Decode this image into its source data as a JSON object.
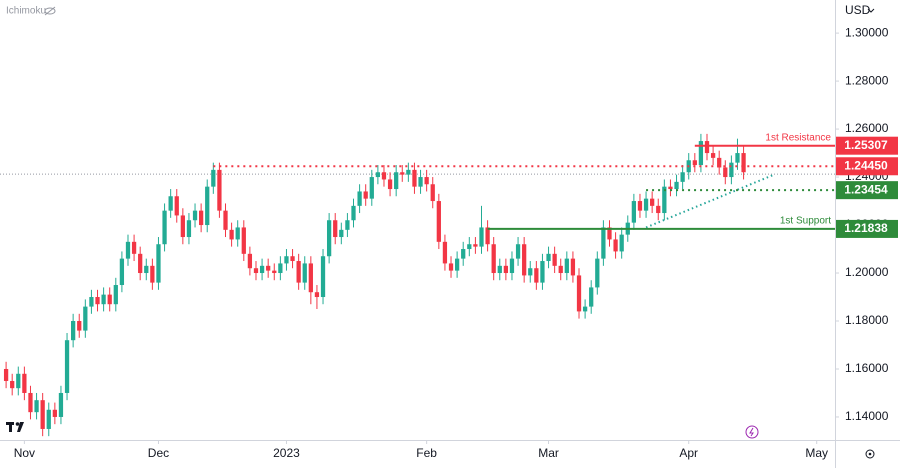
{
  "chart_data": {
    "type": "candlestick",
    "indicator": "Ichimoku",
    "currency": "USD",
    "ylim": [
      1.1304,
      1.3138
    ],
    "yticks": [
      {
        "value": 1.14,
        "label": "1.14000"
      },
      {
        "value": 1.16,
        "label": "1.16000"
      },
      {
        "value": 1.18,
        "label": "1.18000"
      },
      {
        "value": 1.2,
        "label": "1.20000"
      },
      {
        "value": 1.22,
        "label": "1.22000"
      },
      {
        "value": 1.24,
        "label": "1.24000"
      },
      {
        "value": 1.26,
        "label": "1.26000"
      },
      {
        "value": 1.28,
        "label": "1.28000"
      },
      {
        "value": 1.3,
        "label": "1.30000"
      }
    ],
    "xlim": [
      -1,
      136
    ],
    "xticks": [
      {
        "value": 3,
        "label": "Nov"
      },
      {
        "value": 25,
        "label": "Dec"
      },
      {
        "value": 46,
        "label": "2023"
      },
      {
        "value": 69,
        "label": "Feb"
      },
      {
        "value": 89,
        "label": "Mar"
      },
      {
        "value": 112,
        "label": "Apr"
      },
      {
        "value": 133,
        "label": "May"
      }
    ],
    "up_color": "#22ab94",
    "down_color": "#f23645",
    "open": [
      1.16,
      1.155,
      1.152,
      1.158,
      1.15,
      1.142,
      1.147,
      1.135,
      1.143,
      1.14,
      1.15,
      1.172,
      1.18,
      1.176,
      1.186,
      1.19,
      1.187,
      1.191,
      1.187,
      1.195,
      1.206,
      1.213,
      1.208,
      1.2,
      1.203,
      1.196,
      1.212,
      1.226,
      1.232,
      1.224,
      1.215,
      1.222,
      1.226,
      1.22,
      1.236,
      1.243,
      1.226,
      1.218,
      1.214,
      1.219,
      1.208,
      1.202,
      1.2,
      1.203,
      1.201,
      1.2,
      1.204,
      1.207,
      1.205,
      1.196,
      1.204,
      1.192,
      1.19,
      1.207,
      1.222,
      1.215,
      1.218,
      1.222,
      1.228,
      1.234,
      1.231,
      1.24,
      1.242,
      1.239,
      1.235,
      1.242,
      1.241,
      1.243,
      1.236,
      1.24,
      1.237,
      1.23,
      1.213,
      1.204,
      1.201,
      1.206,
      1.21,
      1.212,
      1.211,
      1.219,
      1.212,
      1.2,
      1.203,
      1.2,
      1.206,
      1.212,
      1.199,
      1.202,
      1.196,
      1.205,
      1.208,
      1.203,
      1.2,
      1.206,
      1.199,
      1.184,
      1.186,
      1.194,
      1.206,
      1.219,
      1.214,
      1.209,
      1.216,
      1.221,
      1.23,
      1.226,
      1.231,
      1.228,
      1.225,
      1.236,
      1.235,
      1.238,
      1.242,
      1.247,
      1.245,
      1.255,
      1.25,
      1.248,
      1.244,
      1.24,
      1.246,
      1.25
    ],
    "high": [
      1.163,
      1.158,
      1.161,
      1.161,
      1.153,
      1.15,
      1.15,
      1.146,
      1.146,
      1.153,
      1.175,
      1.183,
      1.183,
      1.189,
      1.193,
      1.193,
      1.194,
      1.194,
      1.198,
      1.209,
      1.216,
      1.216,
      1.211,
      1.206,
      1.206,
      1.215,
      1.229,
      1.235,
      1.235,
      1.227,
      1.225,
      1.229,
      1.229,
      1.239,
      1.246,
      1.246,
      1.229,
      1.221,
      1.222,
      1.222,
      1.211,
      1.205,
      1.206,
      1.206,
      1.204,
      1.207,
      1.21,
      1.21,
      1.208,
      1.207,
      1.207,
      1.195,
      1.21,
      1.225,
      1.225,
      1.221,
      1.225,
      1.231,
      1.237,
      1.237,
      1.243,
      1.245,
      1.245,
      1.242,
      1.245,
      1.245,
      1.246,
      1.246,
      1.243,
      1.243,
      1.24,
      1.233,
      1.216,
      1.207,
      1.209,
      1.213,
      1.215,
      1.215,
      1.228,
      1.222,
      1.215,
      1.206,
      1.206,
      1.209,
      1.215,
      1.215,
      1.205,
      1.205,
      1.208,
      1.211,
      1.211,
      1.206,
      1.209,
      1.209,
      1.202,
      1.189,
      1.197,
      1.209,
      1.222,
      1.222,
      1.217,
      1.219,
      1.224,
      1.233,
      1.233,
      1.234,
      1.234,
      1.231,
      1.239,
      1.239,
      1.241,
      1.245,
      1.25,
      1.25,
      1.258,
      1.258,
      1.253,
      1.251,
      1.247,
      1.249,
      1.256,
      1.253
    ],
    "low": [
      1.152,
      1.149,
      1.149,
      1.147,
      1.139,
      1.139,
      1.132,
      1.132,
      1.137,
      1.137,
      1.147,
      1.169,
      1.173,
      1.173,
      1.183,
      1.184,
      1.184,
      1.184,
      1.184,
      1.192,
      1.203,
      1.205,
      1.197,
      1.197,
      1.193,
      1.193,
      1.209,
      1.223,
      1.221,
      1.212,
      1.212,
      1.219,
      1.217,
      1.217,
      1.233,
      1.223,
      1.215,
      1.211,
      1.211,
      1.205,
      1.199,
      1.197,
      1.197,
      1.198,
      1.197,
      1.197,
      1.201,
      1.202,
      1.193,
      1.193,
      1.187,
      1.185,
      1.187,
      1.204,
      1.212,
      1.212,
      1.215,
      1.219,
      1.225,
      1.228,
      1.228,
      1.237,
      1.236,
      1.232,
      1.232,
      1.238,
      1.238,
      1.233,
      1.233,
      1.234,
      1.227,
      1.21,
      1.201,
      1.198,
      1.198,
      1.203,
      1.207,
      1.208,
      1.208,
      1.209,
      1.197,
      1.197,
      1.197,
      1.197,
      1.203,
      1.196,
      1.196,
      1.193,
      1.193,
      1.202,
      1.2,
      1.197,
      1.197,
      1.196,
      1.181,
      1.181,
      1.183,
      1.191,
      1.203,
      1.211,
      1.206,
      1.206,
      1.213,
      1.218,
      1.223,
      1.223,
      1.225,
      1.222,
      1.222,
      1.232,
      1.232,
      1.235,
      1.239,
      1.242,
      1.242,
      1.247,
      1.245,
      1.241,
      1.237,
      1.237,
      1.243,
      1.239
    ],
    "close": [
      1.155,
      1.152,
      1.158,
      1.15,
      1.142,
      1.147,
      1.135,
      1.143,
      1.14,
      1.15,
      1.172,
      1.18,
      1.176,
      1.186,
      1.19,
      1.187,
      1.191,
      1.187,
      1.195,
      1.206,
      1.213,
      1.208,
      1.2,
      1.203,
      1.196,
      1.212,
      1.226,
      1.232,
      1.224,
      1.215,
      1.222,
      1.226,
      1.22,
      1.236,
      1.243,
      1.226,
      1.218,
      1.214,
      1.219,
      1.208,
      1.202,
      1.2,
      1.203,
      1.201,
      1.2,
      1.204,
      1.207,
      1.205,
      1.196,
      1.204,
      1.192,
      1.19,
      1.207,
      1.222,
      1.215,
      1.218,
      1.222,
      1.228,
      1.234,
      1.231,
      1.24,
      1.242,
      1.239,
      1.235,
      1.242,
      1.241,
      1.243,
      1.236,
      1.24,
      1.237,
      1.23,
      1.213,
      1.204,
      1.201,
      1.206,
      1.21,
      1.212,
      1.211,
      1.219,
      1.212,
      1.2,
      1.203,
      1.2,
      1.206,
      1.212,
      1.199,
      1.202,
      1.196,
      1.205,
      1.208,
      1.203,
      1.2,
      1.206,
      1.199,
      1.184,
      1.186,
      1.194,
      1.206,
      1.219,
      1.214,
      1.209,
      1.216,
      1.221,
      1.23,
      1.226,
      1.231,
      1.228,
      1.225,
      1.236,
      1.235,
      1.238,
      1.242,
      1.247,
      1.245,
      1.255,
      1.25,
      1.248,
      1.244,
      1.24,
      1.246,
      1.25,
      1.242
    ],
    "levels": [
      {
        "name": "1st Resistance",
        "value": 1.25307,
        "label": "1.25307",
        "start": 113,
        "style": "solid",
        "color": "#f23645"
      },
      {
        "value": 1.2445,
        "label": "1.24450",
        "start": 34,
        "style": "dotted",
        "color": "#f23645"
      },
      {
        "value": 1.23454,
        "label": "1.23454",
        "start": 105,
        "style": "dotted",
        "color": "#2e8b3a"
      },
      {
        "name": "1st Support",
        "value": 1.21838,
        "label": "1.21838",
        "start": 79,
        "style": "solid",
        "color": "#2e8b3a"
      }
    ],
    "trendline": {
      "x": [
        105,
        126
      ],
      "y": [
        1.219,
        1.241
      ],
      "color": "#26a69a"
    },
    "last_price": 1.2412
  }
}
